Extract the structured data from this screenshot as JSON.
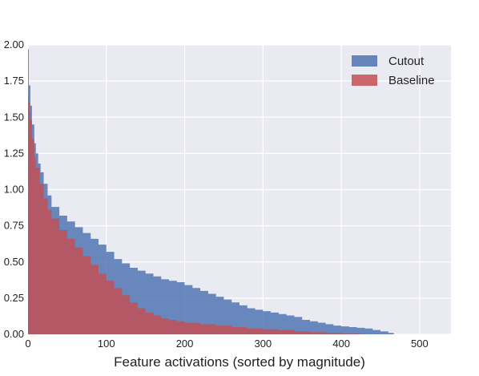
{
  "chart_data": {
    "type": "area",
    "title": "",
    "xlabel": "Feature activations (sorted by magnitude)",
    "ylabel": "",
    "xlim": [
      0,
      540
    ],
    "ylim": [
      0,
      2.0
    ],
    "x_ticks": [
      "0",
      "100",
      "200",
      "300",
      "400",
      "500"
    ],
    "y_ticks": [
      "0.00",
      "0.25",
      "0.50",
      "0.75",
      "1.00",
      "1.25",
      "1.50",
      "1.75",
      "2.00"
    ],
    "grid": true,
    "legend_position": "top-right",
    "background": "#eaeaf2",
    "series": [
      {
        "name": "Cutout",
        "color": "#4c72b0",
        "points": [
          [
            0,
            1.97
          ],
          [
            1,
            1.72
          ],
          [
            3,
            1.58
          ],
          [
            5,
            1.45
          ],
          [
            8,
            1.32
          ],
          [
            10,
            1.25
          ],
          [
            13,
            1.18
          ],
          [
            16,
            1.12
          ],
          [
            20,
            1.04
          ],
          [
            25,
            0.96
          ],
          [
            30,
            0.88
          ],
          [
            40,
            0.82
          ],
          [
            50,
            0.78
          ],
          [
            60,
            0.74
          ],
          [
            70,
            0.7
          ],
          [
            80,
            0.66
          ],
          [
            90,
            0.62
          ],
          [
            100,
            0.57
          ],
          [
            110,
            0.52
          ],
          [
            120,
            0.49
          ],
          [
            130,
            0.46
          ],
          [
            140,
            0.44
          ],
          [
            150,
            0.42
          ],
          [
            160,
            0.4
          ],
          [
            170,
            0.38
          ],
          [
            180,
            0.37
          ],
          [
            190,
            0.36
          ],
          [
            200,
            0.34
          ],
          [
            210,
            0.32
          ],
          [
            220,
            0.3
          ],
          [
            230,
            0.28
          ],
          [
            240,
            0.26
          ],
          [
            250,
            0.24
          ],
          [
            260,
            0.22
          ],
          [
            270,
            0.2
          ],
          [
            280,
            0.18
          ],
          [
            290,
            0.17
          ],
          [
            300,
            0.16
          ],
          [
            310,
            0.15
          ],
          [
            320,
            0.14
          ],
          [
            330,
            0.13
          ],
          [
            340,
            0.12
          ],
          [
            350,
            0.1
          ],
          [
            360,
            0.09
          ],
          [
            370,
            0.08
          ],
          [
            380,
            0.07
          ],
          [
            390,
            0.06
          ],
          [
            400,
            0.055
          ],
          [
            410,
            0.05
          ],
          [
            420,
            0.045
          ],
          [
            430,
            0.04
          ],
          [
            440,
            0.03
          ],
          [
            450,
            0.02
          ],
          [
            460,
            0.01
          ],
          [
            467,
            0.0
          ]
        ]
      },
      {
        "name": "Baseline",
        "color": "#c44e52",
        "points": [
          [
            0,
            1.65
          ],
          [
            1,
            1.6
          ],
          [
            2,
            1.53
          ],
          [
            3,
            1.48
          ],
          [
            5,
            1.35
          ],
          [
            8,
            1.22
          ],
          [
            10,
            1.15
          ],
          [
            15,
            1.04
          ],
          [
            20,
            0.94
          ],
          [
            25,
            0.86
          ],
          [
            30,
            0.8
          ],
          [
            40,
            0.72
          ],
          [
            50,
            0.66
          ],
          [
            60,
            0.6
          ],
          [
            70,
            0.54
          ],
          [
            80,
            0.48
          ],
          [
            90,
            0.42
          ],
          [
            100,
            0.37
          ],
          [
            110,
            0.32
          ],
          [
            120,
            0.27
          ],
          [
            130,
            0.22
          ],
          [
            140,
            0.18
          ],
          [
            150,
            0.15
          ],
          [
            160,
            0.13
          ],
          [
            170,
            0.11
          ],
          [
            180,
            0.1
          ],
          [
            190,
            0.09
          ],
          [
            200,
            0.08
          ],
          [
            220,
            0.07
          ],
          [
            240,
            0.06
          ],
          [
            260,
            0.05
          ],
          [
            280,
            0.04
          ],
          [
            300,
            0.035
          ],
          [
            320,
            0.03
          ],
          [
            340,
            0.02
          ],
          [
            360,
            0.015
          ],
          [
            380,
            0.01
          ],
          [
            400,
            0.005
          ],
          [
            420,
            0.002
          ],
          [
            430,
            0.0
          ]
        ]
      }
    ]
  }
}
